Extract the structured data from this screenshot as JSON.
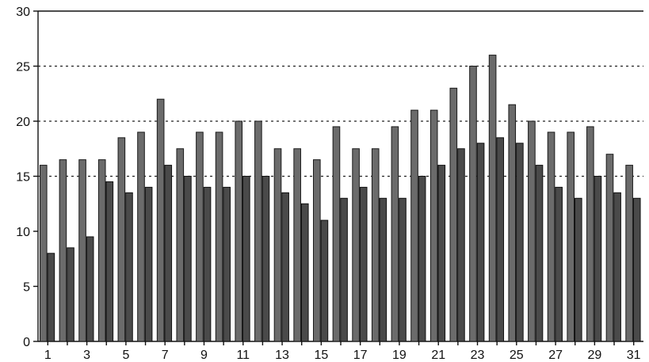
{
  "chart_data": {
    "type": "bar",
    "title": "",
    "xlabel": "",
    "ylabel": "",
    "ylim": [
      0,
      30
    ],
    "y_ticks": [
      0,
      5,
      10,
      15,
      20,
      25,
      30
    ],
    "grid": "horizontal dashed at 15, 20, 25",
    "categories": [
      1,
      2,
      3,
      4,
      5,
      6,
      7,
      8,
      9,
      10,
      11,
      12,
      13,
      14,
      15,
      16,
      17,
      18,
      19,
      20,
      21,
      22,
      23,
      24,
      25,
      26,
      27,
      28,
      29,
      30,
      31
    ],
    "x_tick_labels": [
      "1",
      "3",
      "5",
      "7",
      "9",
      "11",
      "13",
      "15",
      "17",
      "19",
      "21",
      "23",
      "25",
      "27",
      "29",
      "31"
    ],
    "series": [
      {
        "values": [
          16,
          16.5,
          16.5,
          16.5,
          18.5,
          19,
          22,
          17.5,
          19,
          19,
          20,
          20,
          17.5,
          17.5,
          16.5,
          19.5,
          17.5,
          17.5,
          19.5,
          21,
          21,
          23,
          25,
          26,
          21.5,
          20,
          19,
          19,
          19.5,
          17,
          16
        ]
      },
      {
        "values": [
          8,
          8.5,
          9.5,
          14.5,
          13.5,
          14,
          16,
          15,
          14,
          14,
          15,
          15,
          13.5,
          12.5,
          11,
          13,
          14,
          13,
          13,
          15,
          16,
          17.5,
          18,
          18.5,
          18,
          16,
          14,
          13,
          15,
          13.5,
          13
        ]
      }
    ],
    "colors": {
      "series_a": "#6b6b6b",
      "series_b": "#4a4a4a"
    }
  }
}
